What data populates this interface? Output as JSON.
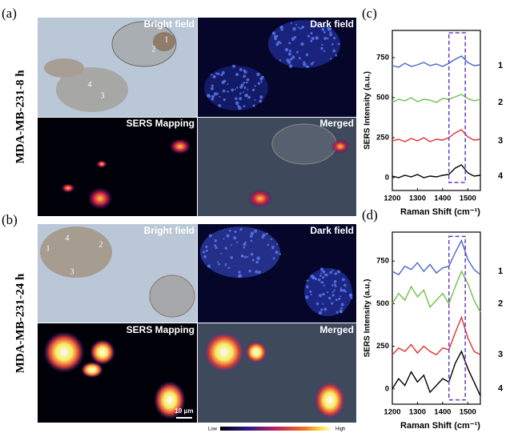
{
  "figure": {
    "panels": [
      {
        "label": "(a)",
        "sample": "MDA-MB-231-8 h",
        "images": [
          "Bright field",
          "Dark field",
          "SERS Mapping",
          "Merged"
        ],
        "cells": [
          "1",
          "2",
          "3",
          "4"
        ]
      },
      {
        "label": "(b)",
        "sample": "MDA-MB-231-24 h",
        "images": [
          "Bright field",
          "Dark field",
          "SERS Mapping",
          "Merged"
        ],
        "cells": [
          "1",
          "2",
          "3",
          "4"
        ],
        "scale_bar": "10 μm"
      }
    ],
    "colorbar": {
      "low": "Low",
      "high": "High"
    }
  },
  "chart_data": [
    {
      "type": "line",
      "panel": "(c)",
      "xlabel": "Raman Shift (cm⁻¹)",
      "ylabel": "SERS Intensity (a.u.)",
      "x": [
        1200,
        1225,
        1250,
        1275,
        1300,
        1325,
        1350,
        1375,
        1400,
        1425,
        1450,
        1475,
        1500,
        1525,
        1550
      ],
      "series": [
        {
          "name": "1",
          "color": "#4a66c8",
          "values": [
            700,
            690,
            715,
            695,
            705,
            720,
            700,
            710,
            695,
            715,
            740,
            760,
            720,
            700,
            705
          ]
        },
        {
          "name": "2",
          "color": "#6dc04a",
          "values": [
            470,
            490,
            480,
            500,
            475,
            490,
            485,
            470,
            495,
            490,
            505,
            520,
            495,
            480,
            490
          ]
        },
        {
          "name": "3",
          "color": "#e03030",
          "values": [
            230,
            240,
            225,
            245,
            230,
            250,
            225,
            240,
            235,
            250,
            280,
            300,
            255,
            235,
            240
          ]
        },
        {
          "name": "4",
          "color": "#000000",
          "values": [
            10,
            0,
            15,
            5,
            20,
            0,
            10,
            5,
            15,
            20,
            60,
            80,
            30,
            10,
            15
          ]
        }
      ],
      "xlim": [
        1200,
        1550
      ],
      "xticks": [
        1200,
        1300,
        1400,
        1500
      ],
      "ylim": [
        -80,
        920
      ],
      "yticks": [
        0,
        250,
        500,
        750
      ],
      "highlight": {
        "x": [
          1425,
          1490
        ],
        "y": [
          -30,
          905
        ],
        "color": "#6a3cc0"
      }
    },
    {
      "type": "line",
      "panel": "(d)",
      "xlabel": "Raman Shift (cm⁻¹)",
      "ylabel": "SERS Intensity (a.u.)",
      "x": [
        1200,
        1225,
        1250,
        1275,
        1300,
        1325,
        1350,
        1375,
        1400,
        1425,
        1450,
        1475,
        1500,
        1525,
        1550
      ],
      "series": [
        {
          "name": "1",
          "color": "#4a66c8",
          "values": [
            690,
            670,
            720,
            700,
            740,
            690,
            730,
            680,
            710,
            720,
            800,
            870,
            760,
            700,
            670
          ]
        },
        {
          "name": "2",
          "color": "#6dc04a",
          "values": [
            500,
            560,
            520,
            600,
            540,
            580,
            480,
            520,
            560,
            500,
            600,
            690,
            620,
            520,
            450
          ]
        },
        {
          "name": "3",
          "color": "#e03030",
          "values": [
            200,
            240,
            220,
            260,
            210,
            250,
            220,
            200,
            240,
            230,
            330,
            420,
            300,
            220,
            200
          ]
        },
        {
          "name": "4",
          "color": "#000000",
          "values": [
            0,
            60,
            20,
            100,
            40,
            80,
            -20,
            20,
            60,
            40,
            150,
            220,
            120,
            40,
            -40
          ]
        }
      ],
      "xlim": [
        1200,
        1550
      ],
      "xticks": [
        1200,
        1300,
        1400,
        1500
      ],
      "ylim": [
        -90,
        920
      ],
      "yticks": [
        0,
        250,
        500,
        750
      ],
      "highlight": {
        "x": [
          1425,
          1490
        ],
        "y": [
          -65,
          895
        ],
        "color": "#6a3cc0"
      }
    }
  ]
}
